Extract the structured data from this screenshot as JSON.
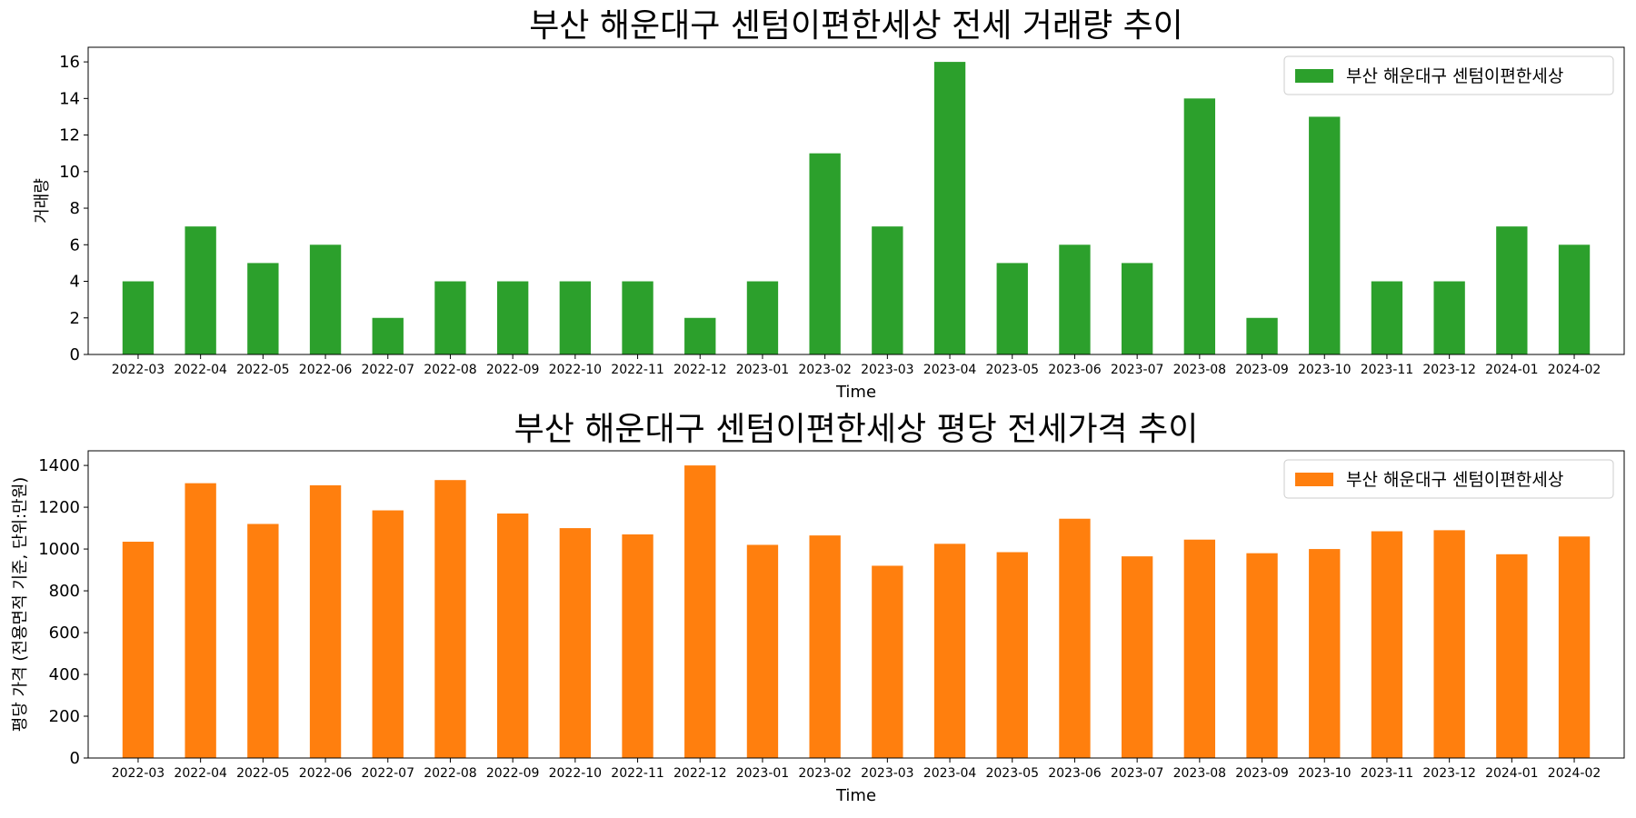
{
  "chart_data": [
    {
      "type": "bar",
      "title": "부산 해운대구 센텀이편한세상 전세 거래량 추이",
      "xlabel": "Time",
      "ylabel": "거래량",
      "categories": [
        "2022-03",
        "2022-04",
        "2022-05",
        "2022-06",
        "2022-07",
        "2022-08",
        "2022-09",
        "2022-10",
        "2022-11",
        "2022-12",
        "2023-01",
        "2023-02",
        "2023-03",
        "2023-04",
        "2023-05",
        "2023-06",
        "2023-07",
        "2023-08",
        "2023-09",
        "2023-10",
        "2023-11",
        "2023-12",
        "2024-01",
        "2024-02"
      ],
      "series": [
        {
          "name": "부산 해운대구 센텀이편한세상",
          "color": "#2ca02c",
          "values": [
            4,
            7,
            5,
            6,
            2,
            4,
            4,
            4,
            4,
            2,
            4,
            11,
            7,
            16,
            5,
            6,
            5,
            14,
            2,
            13,
            4,
            4,
            7,
            6
          ]
        }
      ],
      "ylim": [
        0,
        16.8
      ],
      "yticks": [
        0,
        2,
        4,
        6,
        8,
        10,
        12,
        14,
        16
      ],
      "grid": false,
      "legend_position": "top-right"
    },
    {
      "type": "bar",
      "title": "부산 해운대구 센텀이편한세상 평당 전세가격 추이",
      "xlabel": "Time",
      "ylabel": "평당 가격 (전용면적 기준, 단위:만원)",
      "categories": [
        "2022-03",
        "2022-04",
        "2022-05",
        "2022-06",
        "2022-07",
        "2022-08",
        "2022-09",
        "2022-10",
        "2022-11",
        "2022-12",
        "2023-01",
        "2023-02",
        "2023-03",
        "2023-04",
        "2023-05",
        "2023-06",
        "2023-07",
        "2023-08",
        "2023-09",
        "2023-10",
        "2023-11",
        "2023-12",
        "2024-01",
        "2024-02"
      ],
      "series": [
        {
          "name": "부산 해운대구 센텀이편한세상",
          "color": "#ff7f0e",
          "values": [
            1035,
            1315,
            1120,
            1305,
            1185,
            1330,
            1170,
            1100,
            1070,
            1400,
            1020,
            1065,
            920,
            1025,
            985,
            1145,
            965,
            1045,
            980,
            1000,
            1085,
            1090,
            975,
            1060
          ]
        }
      ],
      "ylim": [
        0,
        1470
      ],
      "yticks": [
        0,
        200,
        400,
        600,
        800,
        1000,
        1200,
        1400
      ],
      "grid": false,
      "legend_position": "top-right"
    }
  ]
}
